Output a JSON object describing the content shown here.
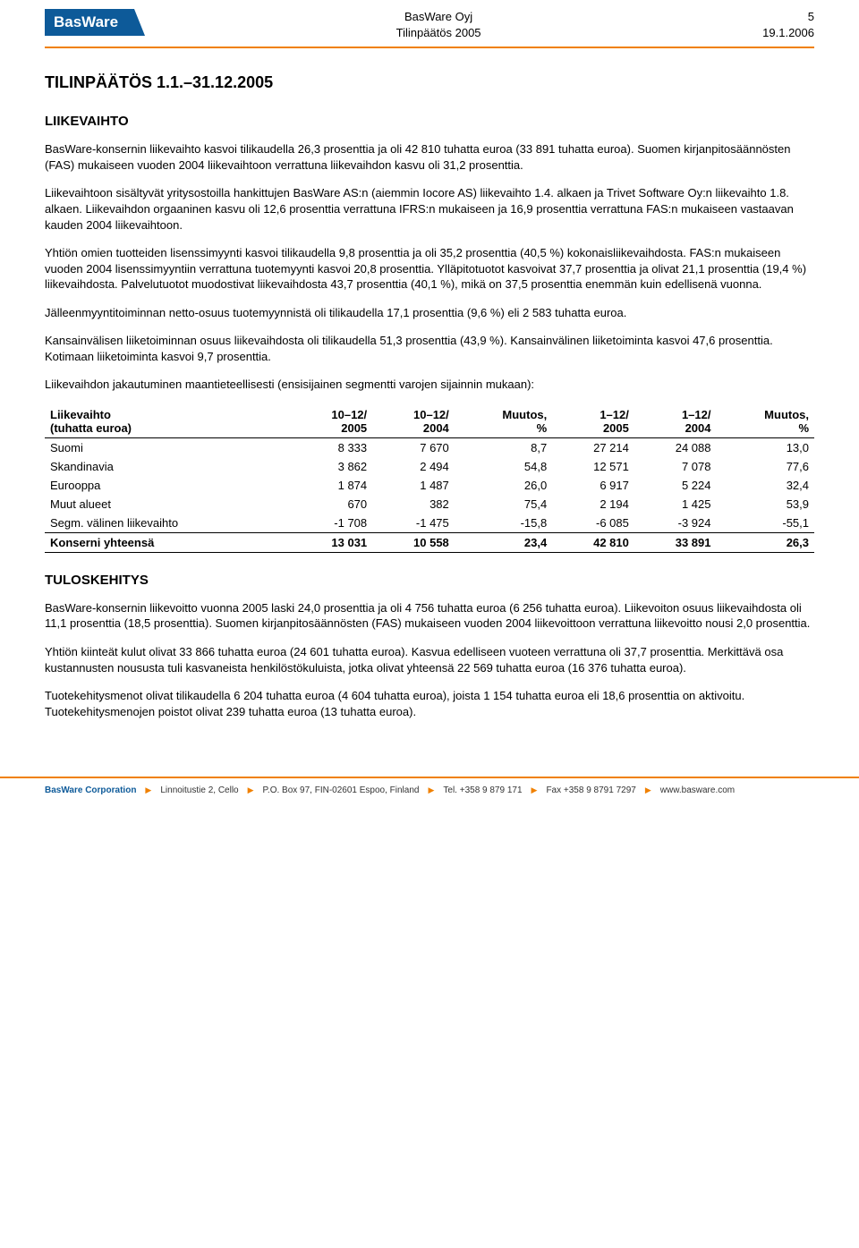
{
  "header": {
    "logo": "BasWare",
    "company": "BasWare Oyj",
    "doc": "Tilinpäätös 2005",
    "page": "5",
    "date": "19.1.2006"
  },
  "title": "TILINPÄÄTÖS 1.1.–31.12.2005",
  "s1": {
    "heading": "LIIKEVAIHTO",
    "p1": "BasWare-konsernin liikevaihto kasvoi tilikaudella 26,3 prosenttia ja oli 42 810 tuhatta euroa (33 891 tuhatta euroa). Suomen kirjanpitosäännösten (FAS) mukaiseen vuoden 2004 liikevaihtoon verrattuna liikevaihdon kasvu oli 31,2 prosenttia.",
    "p2": "Liikevaihtoon sisältyvät yritysostoilla hankittujen BasWare AS:n (aiemmin Iocore AS) liikevaihto 1.4. alkaen ja Trivet Software Oy:n liikevaihto 1.8. alkaen. Liikevaihdon orgaaninen kasvu oli 12,6 prosenttia verrattuna IFRS:n mukaiseen ja 16,9 prosenttia verrattuna FAS:n mukaiseen vastaavan kauden 2004 liikevaihtoon.",
    "p3": "Yhtiön omien tuotteiden lisenssimyynti kasvoi tilikaudella 9,8 prosenttia ja oli 35,2 prosenttia (40,5 %) kokonaisliikevaihdosta. FAS:n mukaiseen vuoden 2004 lisenssimyyntiin verrattuna tuotemyynti kasvoi 20,8 prosenttia. Ylläpitotuotot kasvoivat 37,7 prosenttia ja olivat 21,1 prosenttia (19,4 %) liikevaihdosta. Palvelutuotot muodostivat liikevaihdosta 43,7 prosenttia (40,1 %), mikä on 37,5 prosenttia enemmän kuin edellisenä vuonna.",
    "p4": "Jälleenmyyntitoiminnan netto-osuus tuotemyynnistä oli tilikaudella 17,1 prosenttia (9,6 %) eli 2 583 tuhatta euroa.",
    "p5": "Kansainvälisen liiketoiminnan osuus liikevaihdosta oli tilikaudella 51,3 prosenttia (43,9 %). Kansainvälinen liiketoiminta kasvoi 47,6 prosenttia. Kotimaan liiketoiminta kasvoi 9,7 prosenttia.",
    "p6": "Liikevaihdon jakautuminen maantieteellisesti (ensisijainen segmentti varojen sijainnin mukaan):"
  },
  "table": {
    "h1a": "Liikevaihto",
    "h1b": "(tuhatta euroa)",
    "h2a": "10–12/",
    "h2b": "2005",
    "h3a": "10–12/",
    "h3b": "2004",
    "h4a": "Muutos,",
    "h4b": "%",
    "h5a": "1–12/",
    "h5b": "2005",
    "h6a": "1–12/",
    "h6b": "2004",
    "h7a": "Muutos,",
    "h7b": "%",
    "rows": [
      {
        "c1": "Suomi",
        "c2": "8 333",
        "c3": "7 670",
        "c4": "8,7",
        "c5": "27 214",
        "c6": "24 088",
        "c7": "13,0"
      },
      {
        "c1": "Skandinavia",
        "c2": "3 862",
        "c3": "2 494",
        "c4": "54,8",
        "c5": "12 571",
        "c6": "7 078",
        "c7": "77,6"
      },
      {
        "c1": "Eurooppa",
        "c2": "1 874",
        "c3": "1 487",
        "c4": "26,0",
        "c5": "6 917",
        "c6": "5 224",
        "c7": "32,4"
      },
      {
        "c1": "Muut alueet",
        "c2": "670",
        "c3": "382",
        "c4": "75,4",
        "c5": "2 194",
        "c6": "1 425",
        "c7": "53,9"
      },
      {
        "c1": "Segm. välinen liikevaihto",
        "c2": "-1 708",
        "c3": "-1 475",
        "c4": "-15,8",
        "c5": "-6 085",
        "c6": "-3 924",
        "c7": "-55,1"
      }
    ],
    "total": {
      "c1": "Konserni yhteensä",
      "c2": "13 031",
      "c3": "10 558",
      "c4": "23,4",
      "c5": "42 810",
      "c6": "33 891",
      "c7": "26,3"
    }
  },
  "s2": {
    "heading": "TULOSKEHITYS",
    "p1": "BasWare-konsernin liikevoitto vuonna 2005 laski 24,0 prosenttia ja oli 4 756 tuhatta euroa (6 256 tuhatta euroa). Liikevoiton osuus liikevaihdosta oli 11,1 prosenttia (18,5 prosenttia). Suomen kirjanpitosäännösten (FAS) mukaiseen vuoden 2004 liikevoittoon verrattuna liikevoitto nousi 2,0 prosenttia.",
    "p2": "Yhtiön kiinteät kulut olivat 33 866 tuhatta euroa (24 601 tuhatta euroa). Kasvua edelliseen vuoteen verrattuna oli 37,7 prosenttia. Merkittävä osa kustannusten noususta tuli kasvaneista henkilöstökuluista, jotka olivat yhteensä 22 569 tuhatta euroa (16 376 tuhatta euroa).",
    "p3": "Tuotekehitysmenot olivat tilikaudella 6 204 tuhatta euroa (4 604 tuhatta euroa), joista 1 154 tuhatta euroa eli 18,6 prosenttia on aktivoitu. Tuotekehitysmenojen poistot olivat 239 tuhatta euroa (13 tuhatta euroa)."
  },
  "footer": {
    "brand": "BasWare Corporation",
    "addr": "Linnoitustie 2, Cello",
    "box": "P.O. Box 97, FIN-02601 Espoo, Finland",
    "tel": "Tel. +358 9 879 171",
    "fax": "Fax +358 9 8791 7297",
    "web": "www.basware.com"
  }
}
